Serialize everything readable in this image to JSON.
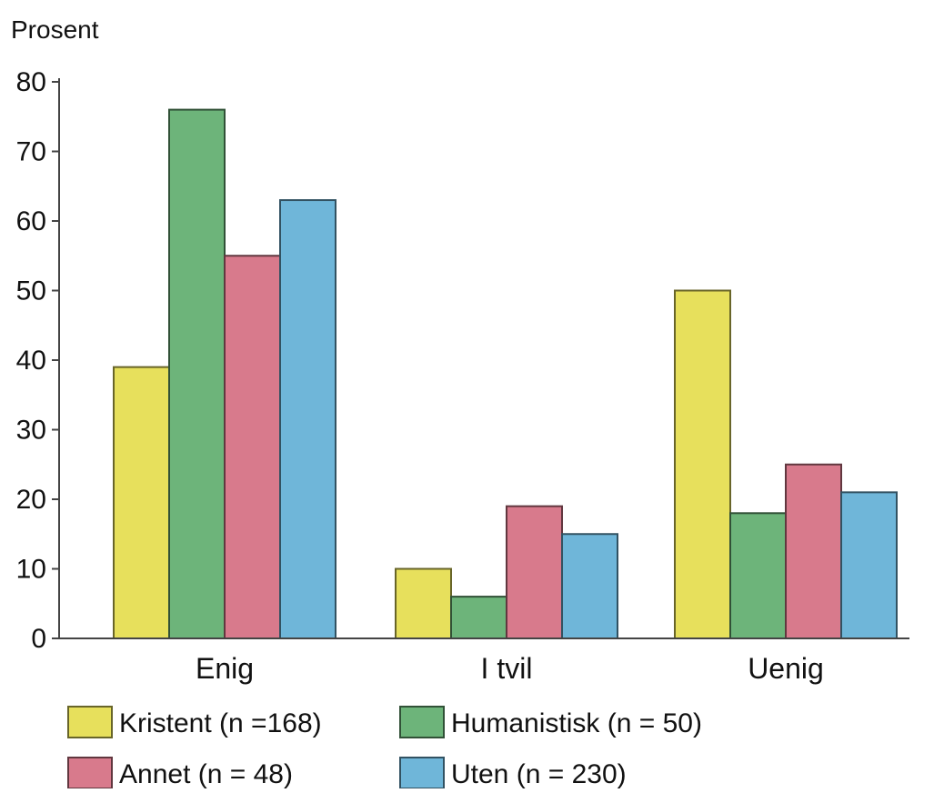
{
  "chart_data": {
    "type": "bar",
    "ylabel": "Prosent",
    "ylim": [
      0,
      80
    ],
    "yticks": [
      0,
      10,
      20,
      30,
      40,
      50,
      60,
      70,
      80
    ],
    "categories": [
      "Enig",
      "I tvil",
      "Uenig"
    ],
    "series": [
      {
        "name": "Kristent (n =168)",
        "values": [
          39,
          10,
          50
        ],
        "color": "#e7e05c"
      },
      {
        "name": "Humanistisk (n = 50)",
        "values": [
          76,
          6,
          18
        ],
        "color": "#6db47a"
      },
      {
        "name": "Annet (n = 48)",
        "values": [
          55,
          19,
          25
        ],
        "color": "#d87a8c"
      },
      {
        "name": "Uten (n = 230)",
        "values": [
          63,
          15,
          21
        ],
        "color": "#6fb6d9"
      }
    ],
    "legend_position": "bottom",
    "grid": false
  }
}
